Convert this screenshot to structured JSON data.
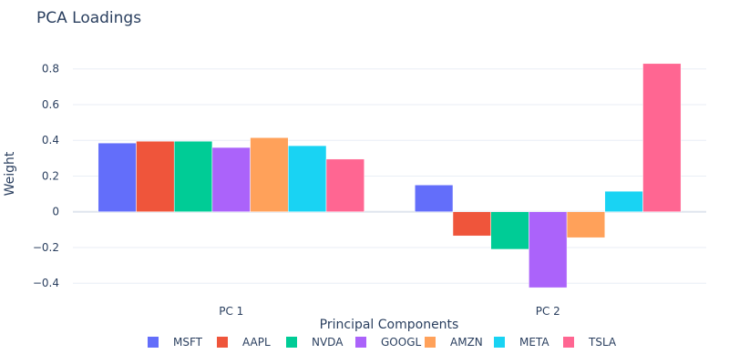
{
  "chart_data": {
    "type": "bar",
    "title": "PCA Loadings",
    "xlabel": "Principal Components",
    "ylabel": "Weight",
    "categories": [
      "PC 1",
      "PC 2"
    ],
    "series": [
      {
        "name": "MSFT",
        "values": [
          0.385,
          0.15
        ],
        "color": "#636efa"
      },
      {
        "name": "AAPL",
        "values": [
          0.395,
          -0.135
        ],
        "color": "#ef553b"
      },
      {
        "name": "NVDA",
        "values": [
          0.395,
          -0.21
        ],
        "color": "#00cc96"
      },
      {
        "name": "GOOGL",
        "values": [
          0.36,
          -0.425
        ],
        "color": "#ab63fa"
      },
      {
        "name": "AMZN",
        "values": [
          0.415,
          -0.145
        ],
        "color": "#ffa15a"
      },
      {
        "name": "META",
        "values": [
          0.37,
          0.115
        ],
        "color": "#19d3f3"
      },
      {
        "name": "TSLA",
        "values": [
          0.295,
          0.83
        ],
        "color": "#ff6692"
      }
    ],
    "yticks": [
      -0.4,
      -0.2,
      0,
      0.2,
      0.4,
      0.6,
      0.8
    ],
    "ytick_labels": [
      "−0.4",
      "−0.2",
      "0",
      "0.2",
      "0.4",
      "0.6",
      "0.8"
    ],
    "ylim": [
      -0.46,
      0.88
    ],
    "grid": true,
    "legend_position": "bottom-center-horizontal"
  }
}
